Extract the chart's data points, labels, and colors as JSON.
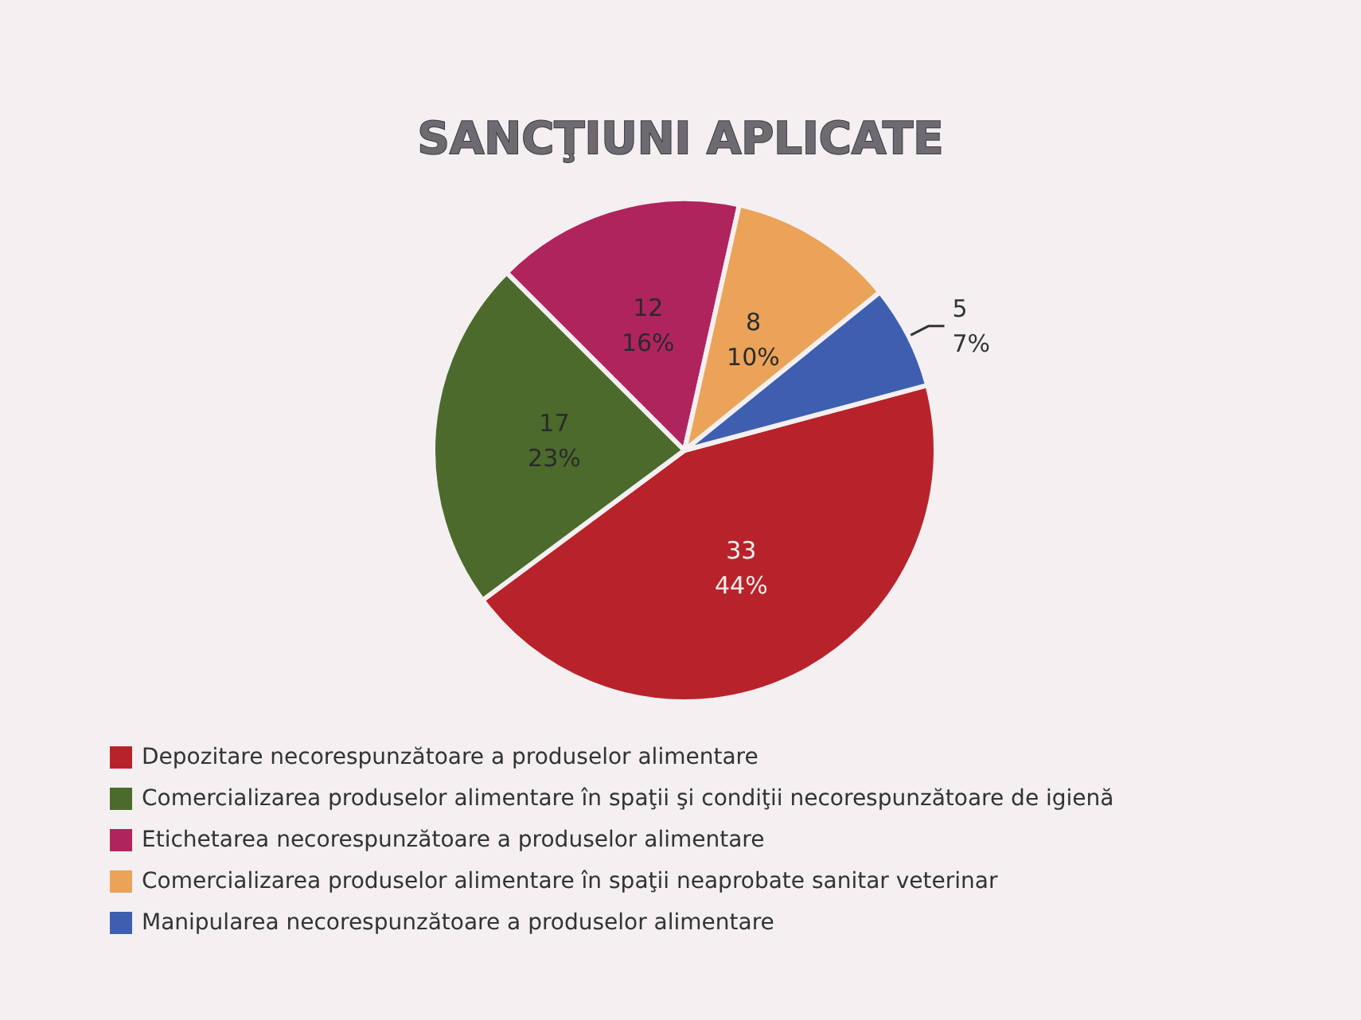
{
  "chart_data": {
    "type": "pie",
    "title": "SANCŢIUNI APLICATE",
    "categories": [
      "Depozitare necorespunzătoare a produselor alimentare",
      "Comercializarea produselor alimentare în spaţii şi condiţii necorespunzătoare de igienă",
      "Etichetarea necorespunzătoare a produselor alimentare",
      "Comercializarea produselor alimentare în spaţii neaprobate sanitar veterinar",
      "Manipularea necorespunzătoare a produselor alimentare"
    ],
    "values": [
      33,
      17,
      12,
      8,
      5
    ],
    "value_labels": [
      "33\n44%",
      "17\n23%",
      "12\n16%",
      "8\n10%",
      "5\n7%"
    ],
    "colors": [
      "#b8232b",
      "#4b6a2c",
      "#b0245e",
      "#eaa358",
      "#3e5fb0"
    ],
    "legend": "bottom left"
  }
}
